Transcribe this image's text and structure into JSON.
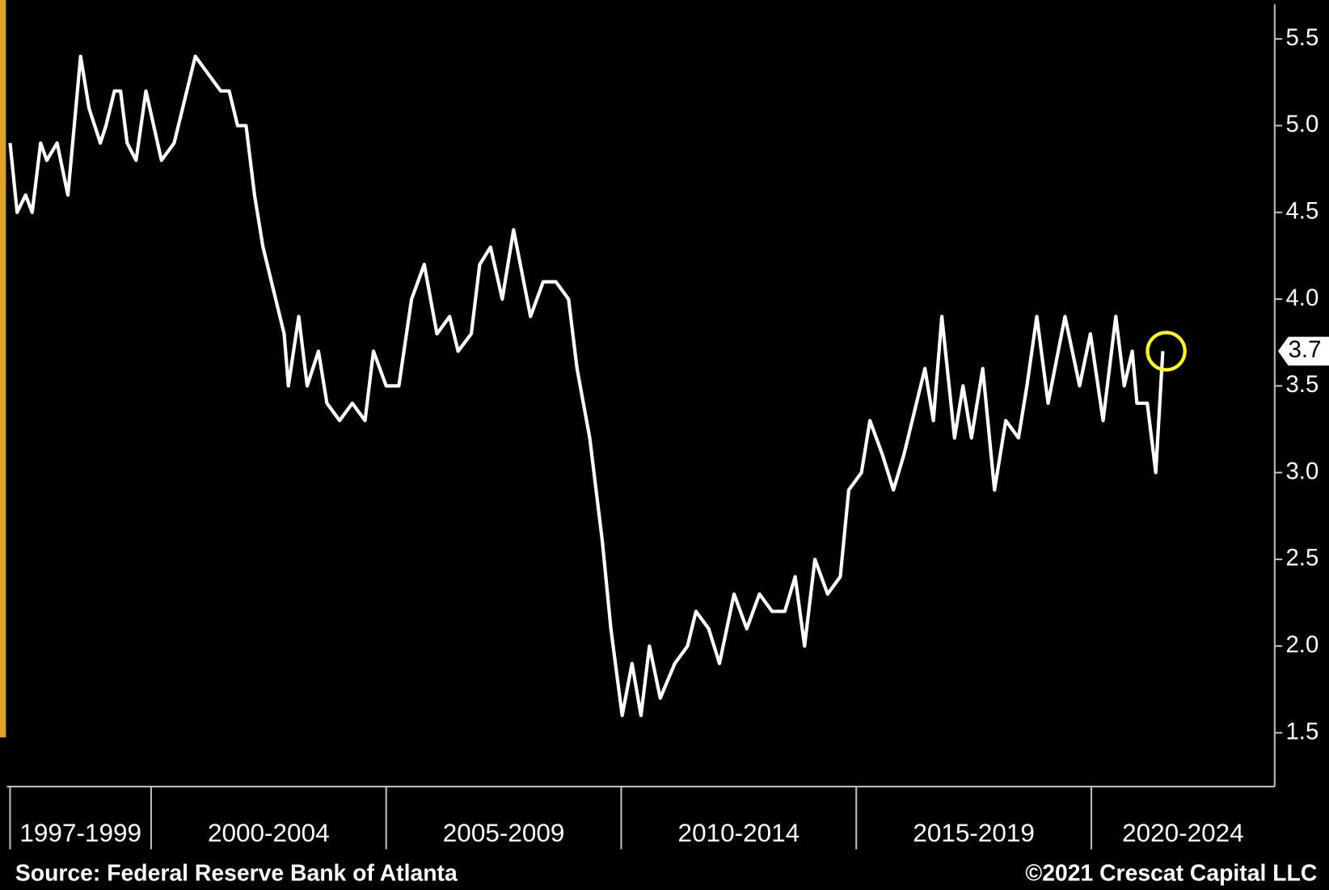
{
  "chart_data": {
    "type": "line",
    "color": "#ffffff",
    "x": [
      1997.0,
      1997.15,
      1997.33,
      1997.47,
      1997.65,
      1997.78,
      1998.0,
      1998.23,
      1998.5,
      1998.68,
      1998.92,
      1999.04,
      1999.22,
      1999.35,
      1999.49,
      1999.68,
      1999.89,
      2000.22,
      2000.49,
      2000.76,
      2000.94,
      2001.21,
      2001.48,
      2001.66,
      2001.84,
      2002.02,
      2002.2,
      2002.38,
      2002.56,
      2002.83,
      2002.92,
      2003.14,
      2003.32,
      2003.56,
      2003.74,
      2004.01,
      2004.28,
      2004.55,
      2004.73,
      2005.0,
      2005.27,
      2005.54,
      2005.81,
      2006.08,
      2006.35,
      2006.53,
      2006.81,
      2006.99,
      2007.22,
      2007.47,
      2007.71,
      2008.07,
      2008.34,
      2008.61,
      2008.88,
      2009.06,
      2009.33,
      2009.6,
      2009.78,
      2010.02,
      2010.23,
      2010.42,
      2010.6,
      2010.83,
      2011.14,
      2011.41,
      2011.59,
      2011.86,
      2012.09,
      2012.4,
      2012.67,
      2012.94,
      2013.21,
      2013.48,
      2013.7,
      2013.9,
      2014.12,
      2014.39,
      2014.66,
      2014.84,
      2015.11,
      2015.29,
      2015.56,
      2015.79,
      2016.01,
      2016.28,
      2016.46,
      2016.64,
      2016.82,
      2017.09,
      2017.27,
      2017.45,
      2017.69,
      2017.94,
      2018.18,
      2018.45,
      2018.63,
      2018.84,
      2019.08,
      2019.44,
      2019.75,
      2019.98,
      2020.25,
      2020.52,
      2020.7,
      2020.87,
      2020.97,
      2021.19,
      2021.37,
      2021.52
    ],
    "values": [
      4.9,
      4.5,
      4.6,
      4.5,
      4.9,
      4.8,
      4.9,
      4.6,
      5.4,
      5.1,
      4.9,
      5.0,
      5.2,
      5.2,
      4.9,
      4.8,
      5.2,
      4.8,
      4.9,
      5.2,
      5.4,
      5.3,
      5.2,
      5.2,
      5.0,
      5.0,
      4.6,
      4.3,
      4.1,
      3.8,
      3.5,
      3.9,
      3.5,
      3.7,
      3.4,
      3.3,
      3.4,
      3.3,
      3.7,
      3.5,
      3.5,
      4.0,
      4.2,
      3.8,
      3.9,
      3.7,
      3.8,
      4.2,
      4.3,
      4.0,
      4.4,
      3.9,
      4.1,
      4.1,
      4.0,
      3.6,
      3.2,
      2.6,
      2.1,
      1.6,
      1.9,
      1.6,
      2.0,
      1.7,
      1.9,
      2.0,
      2.2,
      2.1,
      1.9,
      2.3,
      2.1,
      2.3,
      2.2,
      2.2,
      2.4,
      2.0,
      2.5,
      2.3,
      2.4,
      2.9,
      3.0,
      3.3,
      3.1,
      2.9,
      3.1,
      3.4,
      3.6,
      3.3,
      3.9,
      3.2,
      3.5,
      3.2,
      3.6,
      2.9,
      3.3,
      3.2,
      3.5,
      3.9,
      3.4,
      3.9,
      3.5,
      3.8,
      3.3,
      3.9,
      3.5,
      3.7,
      3.4,
      3.4,
      3.0,
      3.7
    ],
    "last_value": 3.7,
    "xlim": [
      1996.93,
      2023.9
    ],
    "x_groups": [
      {
        "label": "1997-1999",
        "start": 1997,
        "end": 2000
      },
      {
        "label": "2000-2004",
        "start": 2000,
        "end": 2005
      },
      {
        "label": "2005-2009",
        "start": 2005,
        "end": 2010
      },
      {
        "label": "2010-2014",
        "start": 2010,
        "end": 2015
      },
      {
        "label": "2015-2019",
        "start": 2015,
        "end": 2020
      },
      {
        "label": "2020-2024",
        "start": 2020,
        "end": 2025
      }
    ],
    "ylim": [
      1.19,
      5.7
    ],
    "yticks": [
      1.5,
      {
        "value": 2,
        "label": "2.0"
      },
      2.5,
      {
        "value": 3,
        "label": "3.0"
      },
      3.5,
      {
        "value": 4,
        "label": "4.0"
      },
      4.5,
      {
        "value": 5,
        "label": "5.0"
      },
      5.5
    ],
    "source": "Source: Federal Reserve Bank of Atlanta",
    "copyright": "©2021 Crescat Capital LLC"
  }
}
